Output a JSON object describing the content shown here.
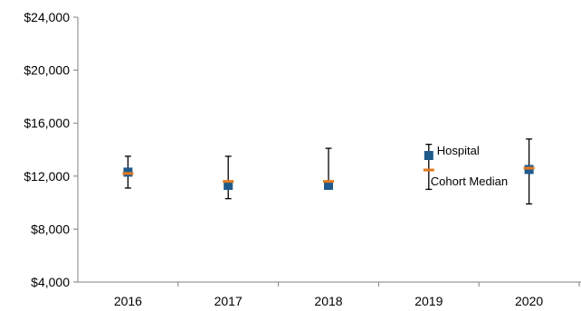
{
  "chart_data": {
    "type": "scatter",
    "categories": [
      "2016",
      "2017",
      "2018",
      "2019",
      "2020"
    ],
    "ylim": [
      4000,
      24000
    ],
    "y_ticks": [
      4000,
      8000,
      12000,
      16000,
      20000,
      24000
    ],
    "y_tick_labels": [
      "$4,000",
      "$8,000",
      "$12,000",
      "$16,000",
      "$20,000",
      "$24,000"
    ],
    "series": [
      {
        "name": "Hospital",
        "marker": "square",
        "color": "#1F5A8C",
        "values": [
          12300,
          11300,
          11300,
          null,
          12500
        ]
      },
      {
        "name": "Cohort Median",
        "marker": "dash",
        "color": "#E07A1F",
        "values": [
          12200,
          11600,
          11600,
          null,
          12600
        ]
      }
    ],
    "error_bars": [
      {
        "low": 11100,
        "high": 13500
      },
      {
        "low": 10300,
        "high": 13500
      },
      {
        "low": 11200,
        "high": 14100
      },
      null,
      {
        "low": 9900,
        "high": 14800
      }
    ],
    "legend": {
      "placement": "right",
      "entries": [
        {
          "label": "Hospital",
          "marker": "square",
          "color": "#1F5A8C"
        },
        {
          "label": "Cohort Median",
          "marker": "dash",
          "color": "#E07A1F"
        }
      ],
      "whisker_low": 11000,
      "whisker_high": 14400
    },
    "grid": false,
    "axis_color": "#808080"
  }
}
